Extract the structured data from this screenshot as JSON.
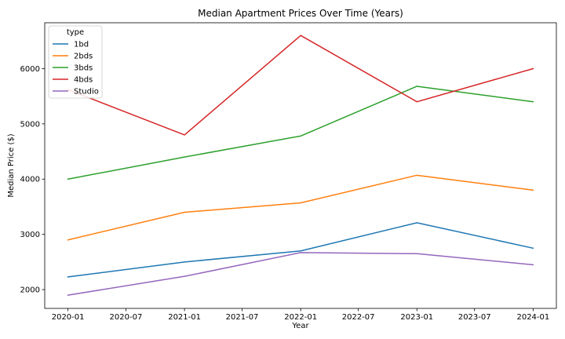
{
  "chart_data": {
    "type": "line",
    "title": "Median Apartment Prices Over Time (Years)",
    "xlabel": "Year",
    "ylabel": "Median Price ($)",
    "x": [
      "2020-01-01",
      "2021-01-01",
      "2022-01-01",
      "2023-01-01",
      "2024-01-01"
    ],
    "x_ticks": [
      "2020-01",
      "2020-07",
      "2021-01",
      "2021-07",
      "2022-01",
      "2022-07",
      "2023-01",
      "2023-07",
      "2024-01"
    ],
    "xlim": [
      "2019-10-20",
      "2024-03-14"
    ],
    "y_ticks": [
      2000,
      3000,
      4000,
      5000,
      6000
    ],
    "ylim": [
      1660,
      6830
    ],
    "grid": false,
    "legend": {
      "title": "type",
      "placement": "top-left"
    },
    "series": [
      {
        "name": "1bd",
        "color": "#1f77b4",
        "values": [
          2230,
          2500,
          2700,
          3210,
          2750
        ]
      },
      {
        "name": "2bds",
        "color": "#ff7f0e",
        "values": [
          2900,
          3400,
          3570,
          4070,
          3800
        ]
      },
      {
        "name": "3bds",
        "color": "#2ca02c",
        "values": [
          4000,
          4400,
          4780,
          5680,
          5400
        ]
      },
      {
        "name": "4bds",
        "color": "#d62728",
        "values": [
          5620,
          4800,
          6600,
          5400,
          6000
        ]
      },
      {
        "name": "Studio",
        "color": "#9467bd",
        "values": [
          1900,
          2240,
          2670,
          2650,
          2450
        ]
      }
    ]
  }
}
